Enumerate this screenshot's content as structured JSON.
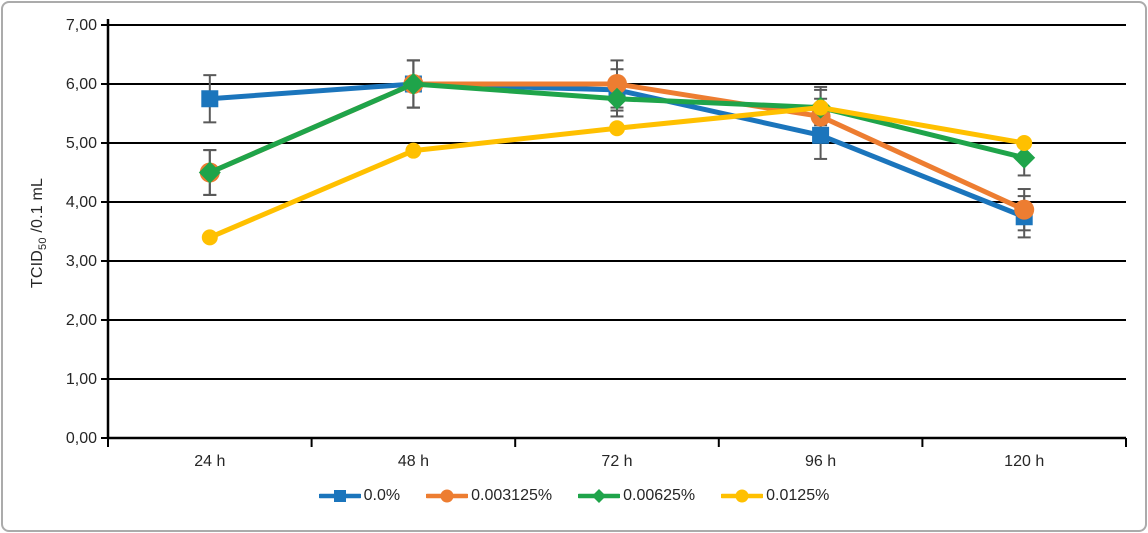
{
  "frame": {
    "background": "#ffffff",
    "border_color": "#ababab"
  },
  "axis": {
    "y_title_main": "TCID",
    "y_title_sub": "50",
    "y_title_rest": " /0.1 mL"
  },
  "chart_data": {
    "type": "line",
    "categories": [
      "24 h",
      "48 h",
      "72 h",
      "96 h",
      "120 h"
    ],
    "series": [
      {
        "name": "0.0%",
        "color": "#1b75bc",
        "marker": "square",
        "marker_size": 17,
        "values": [
          5.75,
          6.0,
          5.9,
          5.13,
          3.75
        ],
        "errors": [
          0.4,
          0.4,
          0.35,
          0.4,
          0.35
        ]
      },
      {
        "name": "0.003125%",
        "color": "#ed7d31",
        "marker": "circle",
        "marker_size": 20,
        "values": [
          4.5,
          6.0,
          6.0,
          5.45,
          3.87
        ],
        "errors": [
          0.38,
          0.4,
          0.4,
          0.3,
          0.35
        ]
      },
      {
        "name": "0.00625%",
        "color": "#1fa44a",
        "marker": "diamond",
        "marker_size": 20,
        "values": [
          4.5,
          6.0,
          5.75,
          5.6,
          4.75
        ],
        "errors": [
          0.38,
          0.4,
          0.3,
          0.3,
          0.3
        ]
      },
      {
        "name": "0.0125%",
        "color": "#ffc000",
        "marker": "circle",
        "marker_size": 16,
        "values": [
          3.4,
          4.87,
          5.25,
          5.6,
          5.0
        ],
        "errors": [
          0,
          0,
          0,
          0.35,
          0
        ]
      }
    ],
    "title": "",
    "xlabel": "",
    "ylabel": "TCID50 /0.1 mL",
    "ylim": [
      0,
      7
    ],
    "ytick_step": 1,
    "ytick_labels": [
      "0,00",
      "1,00",
      "2,00",
      "3,00",
      "4,00",
      "5,00",
      "6,00",
      "7,00"
    ],
    "decimal_separator": ",",
    "grid": true,
    "legend_position": "bottom",
    "grid_color": "#000000",
    "axis_color": "#000000",
    "error_bar_color": "#595959",
    "text_color": "#262626"
  }
}
